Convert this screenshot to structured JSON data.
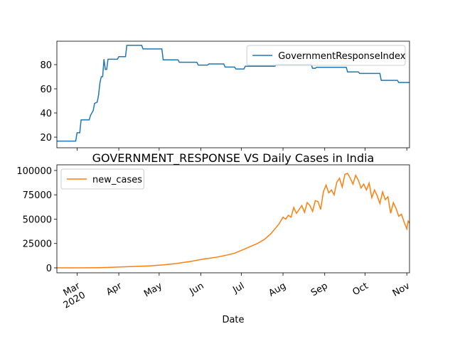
{
  "chart_data": [
    {
      "type": "line",
      "x": [
        46,
        60,
        61,
        63,
        64,
        70,
        71,
        73,
        74,
        76,
        77,
        78,
        79,
        80,
        81,
        82,
        83,
        84,
        91,
        92,
        97,
        98,
        109,
        110,
        124,
        125,
        136,
        137,
        150,
        151,
        158,
        159,
        170,
        171,
        178,
        179,
        185,
        186,
        208,
        209,
        235,
        236,
        238,
        239,
        261,
        262,
        270,
        271,
        286,
        287,
        299,
        300,
        308
      ],
      "series": [
        {
          "name": "GovernmentResponseIndex",
          "color": "#1f77b4",
          "values": [
            16.7,
            16.7,
            23.6,
            23.6,
            34.3,
            34.3,
            38,
            42,
            47.9,
            49,
            55,
            65,
            70,
            70,
            84.5,
            76,
            76,
            84.5,
            84.5,
            86.6,
            86.6,
            96,
            96,
            93,
            93,
            84,
            84,
            82,
            82,
            79.6,
            79.6,
            80.6,
            80.6,
            78,
            78,
            76.4,
            76.4,
            78.7,
            78.7,
            80,
            80,
            77,
            77,
            77.8,
            77.8,
            74,
            74,
            72.7,
            72.7,
            67,
            67,
            65.2,
            65.2
          ]
        }
      ],
      "xlim": [
        46,
        308
      ],
      "ylim": [
        11.2,
        99.4
      ],
      "yticks": [
        20,
        40,
        60,
        80
      ],
      "legend": "upper right"
    },
    {
      "type": "line",
      "title": "GOVERNMENT_RESPONSE VS Daily Cases in India",
      "xlabel": "Date",
      "x": [
        46,
        60,
        75,
        85,
        95,
        105,
        115,
        125,
        135,
        145,
        155,
        165,
        172,
        178,
        185,
        190,
        195,
        200,
        205,
        208,
        211,
        214,
        216,
        218,
        220,
        222,
        224,
        226,
        228,
        230,
        232,
        234,
        236,
        238,
        240,
        242,
        244,
        246,
        248,
        250,
        252,
        254,
        256,
        258,
        260,
        262,
        264,
        266,
        268,
        270,
        272,
        274,
        276,
        278,
        280,
        282,
        284,
        286,
        288,
        290,
        292,
        294,
        296,
        298,
        300,
        302,
        304,
        306,
        307,
        308
      ],
      "series": [
        {
          "name": "new_cases",
          "color": "#ff7f0e",
          "values": [
            0,
            10,
            100,
            500,
            1000,
            1500,
            2000,
            3000,
            4500,
            6500,
            9000,
            11000,
            13000,
            15000,
            19000,
            22000,
            25000,
            29000,
            35000,
            40000,
            45000,
            52000,
            50000,
            54000,
            52000,
            62000,
            56000,
            60000,
            64000,
            57000,
            67000,
            64000,
            58000,
            69000,
            68000,
            60000,
            78000,
            85000,
            77000,
            80000,
            75000,
            88000,
            92000,
            83000,
            96000,
            97000,
            92000,
            86000,
            95000,
            90000,
            82000,
            86000,
            80000,
            87000,
            72000,
            80000,
            74000,
            66000,
            78000,
            70000,
            73000,
            56000,
            67000,
            61000,
            53000,
            55000,
            47000,
            40000,
            48000,
            46000
          ]
        }
      ],
      "xlim": [
        46,
        308
      ],
      "ylim": [
        -5100,
        105800
      ],
      "yticks": [
        0,
        25000,
        50000,
        75000,
        100000
      ],
      "xticks": [
        {
          "value": 61,
          "label": "Mar\n2020"
        },
        {
          "value": 92,
          "label": "Apr"
        },
        {
          "value": 122,
          "label": "May"
        },
        {
          "value": 153,
          "label": "Jun"
        },
        {
          "value": 183,
          "label": "Jul"
        },
        {
          "value": 214,
          "label": "Aug"
        },
        {
          "value": 245,
          "label": "Sep"
        },
        {
          "value": 275,
          "label": "Oct"
        },
        {
          "value": 306,
          "label": "Nov"
        }
      ],
      "legend": "upper left"
    }
  ]
}
